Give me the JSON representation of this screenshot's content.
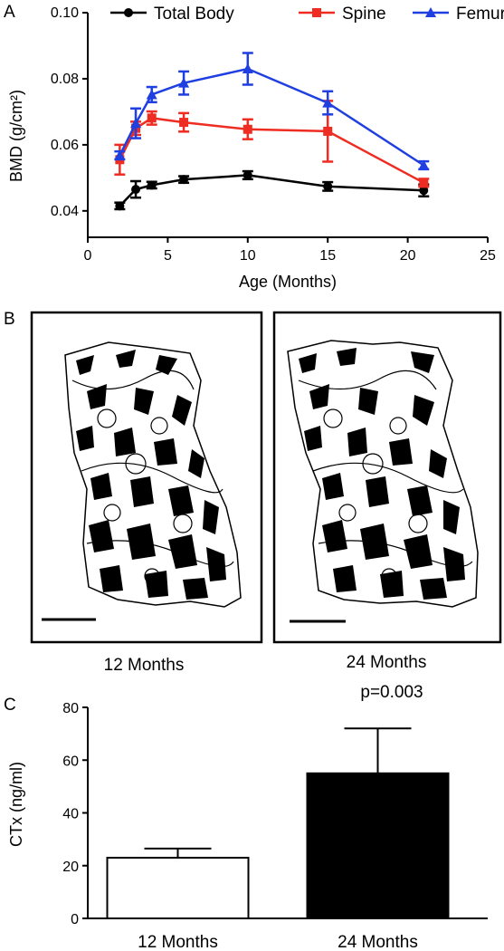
{
  "panels": {
    "a": "A",
    "b": "B",
    "c": "C"
  },
  "chart_data": [
    {
      "type": "line",
      "xlabel": "Age (Months)",
      "ylabel": "BMD (g/cm²)",
      "xlim": [
        0,
        25
      ],
      "ylim": [
        0.032,
        0.1
      ],
      "xticks": [
        "0",
        "5",
        "10",
        "15",
        "20",
        "25"
      ],
      "yticks": [
        "0.04",
        "0.06",
        "0.08",
        "0.10"
      ],
      "legend_position": "top",
      "x": [
        2,
        3,
        4,
        6,
        10,
        15,
        21
      ],
      "series": [
        {
          "name": "Total Body",
          "color": "#000000",
          "marker": "circle",
          "values": [
            0.0415,
            0.0465,
            0.0478,
            0.0495,
            0.0508,
            0.0474,
            0.0462
          ],
          "errors": [
            0.001,
            0.0025,
            0.001,
            0.001,
            0.0012,
            0.0013,
            0.0018
          ]
        },
        {
          "name": "Spine",
          "color": "#ee2c22",
          "marker": "square",
          "values": [
            0.0555,
            0.065,
            0.0681,
            0.0668,
            0.0647,
            0.0641,
            0.0485
          ],
          "errors": [
            0.0045,
            0.002,
            0.002,
            0.0028,
            0.003,
            0.0092,
            0.0012
          ]
        },
        {
          "name": "Femur",
          "color": "#1f3fe0",
          "marker": "triangle",
          "values": [
            0.0568,
            0.0665,
            0.0752,
            0.0787,
            0.083,
            0.0727,
            0.0538
          ],
          "errors": [
            0.0012,
            0.0045,
            0.0023,
            0.0035,
            0.0048,
            0.0035,
            0.0012
          ]
        }
      ]
    },
    {
      "type": "bar",
      "categories": [
        "12 Months",
        "24 Months"
      ],
      "values": [
        23,
        55
      ],
      "errors": [
        3.5,
        17
      ],
      "colors": [
        "#ffffff",
        "#000000"
      ],
      "ylabel": "CTx (ng/ml)",
      "ylim": [
        0,
        80
      ],
      "yticks": [
        "0",
        "20",
        "40",
        "60",
        "80"
      ],
      "annotation": "p=0.003"
    }
  ],
  "images": {
    "left_caption": "12 Months",
    "right_caption": "24 Months",
    "scale_bar_length_fraction": 0.27
  }
}
